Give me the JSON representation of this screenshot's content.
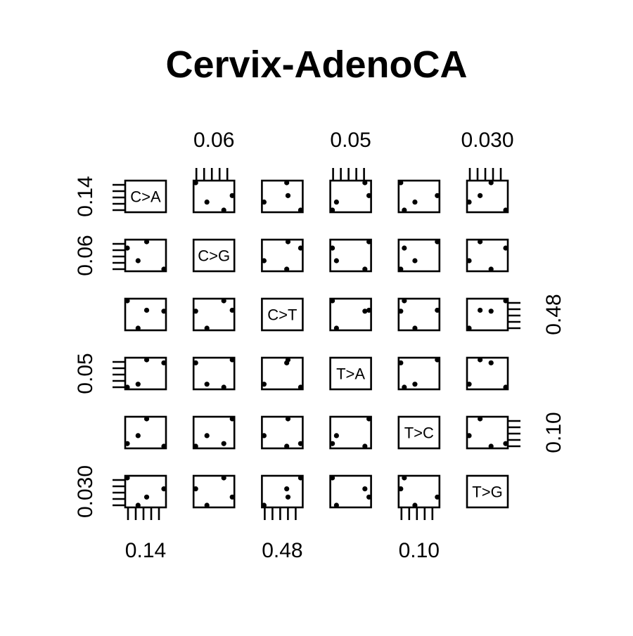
{
  "chart_data": {
    "type": "scatter",
    "subtype": "scatterplot-matrix",
    "title": "Cervix-AdenoCA",
    "variables": [
      "C>A",
      "C>G",
      "C>T",
      "T>A",
      "T>C",
      "T>G"
    ],
    "tick_labels": [
      "0.14",
      "0.06",
      "0.48",
      "0.05",
      "0.10",
      "0.030"
    ],
    "tick_label_sides": [
      "bottom-left",
      "top-left",
      "bottom-right",
      "top-left",
      "bottom-right",
      "top-left"
    ],
    "observations": [
      {
        "C>A": 0.136,
        "C>G": 0.066,
        "C>T": 0.495,
        "T>A": 0.052,
        "T>C": 0.121,
        "T>G": 0.03
      },
      {
        "C>A": 0.132,
        "C>G": 0.057,
        "C>T": 0.476,
        "T>A": 0.044,
        "T>C": 0.102,
        "T>G": 0.027
      },
      {
        "C>A": 0.144,
        "C>G": 0.053,
        "C>T": 0.494,
        "T>A": 0.051,
        "T>C": 0.09,
        "T>G": 0.033
      },
      {
        "C>A": 0.127,
        "C>G": 0.063,
        "C>T": 0.505,
        "T>A": 0.043,
        "T>C": 0.093,
        "T>G": 0.037
      }
    ],
    "grid": false,
    "legend": "none"
  }
}
